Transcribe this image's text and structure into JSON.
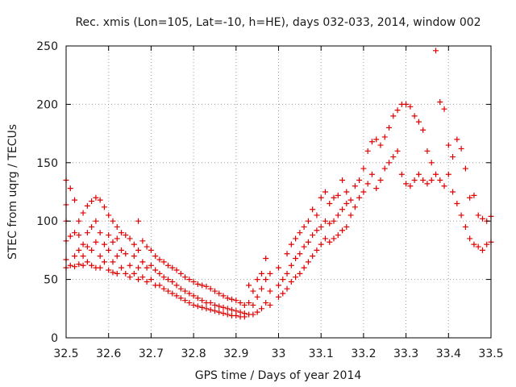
{
  "chart_data": {
    "type": "scatter",
    "title": "Rec. xmis (Lon=105, Lat=-10, h=HE), days 032-033, 2014, window 002",
    "xlabel": "GPS time / Days of year 2014",
    "ylabel": "STEC from uqrg / TECUs",
    "xlim": [
      32.5,
      33.5
    ],
    "ylim": [
      0,
      250
    ],
    "xticks": [
      "32.5",
      "32.6",
      "32.7",
      "32.8",
      "32.9",
      "33",
      "33.1",
      "33.2",
      "33.3",
      "33.4",
      "33.5"
    ],
    "yticks": [
      "0",
      "50",
      "100",
      "150",
      "200",
      "250"
    ],
    "grid": true,
    "marker": "+",
    "color": "#e00000",
    "points": [
      [
        32.5,
        135
      ],
      [
        32.5,
        114
      ],
      [
        32.5,
        100
      ],
      [
        32.5,
        83
      ],
      [
        32.5,
        67
      ],
      [
        32.5,
        60
      ],
      [
        32.51,
        128
      ],
      [
        32.51,
        87
      ],
      [
        32.51,
        62
      ],
      [
        32.52,
        118
      ],
      [
        32.52,
        90
      ],
      [
        32.52,
        70
      ],
      [
        32.52,
        61
      ],
      [
        32.53,
        100
      ],
      [
        32.53,
        88
      ],
      [
        32.53,
        75
      ],
      [
        32.53,
        63
      ],
      [
        32.54,
        107
      ],
      [
        32.54,
        80
      ],
      [
        32.54,
        70
      ],
      [
        32.54,
        62
      ],
      [
        32.55,
        113
      ],
      [
        32.55,
        90
      ],
      [
        32.55,
        78
      ],
      [
        32.55,
        65
      ],
      [
        32.56,
        117
      ],
      [
        32.56,
        95
      ],
      [
        32.56,
        75
      ],
      [
        32.56,
        62
      ],
      [
        32.57,
        120
      ],
      [
        32.57,
        100
      ],
      [
        32.57,
        82
      ],
      [
        32.57,
        60
      ],
      [
        32.58,
        118
      ],
      [
        32.58,
        90
      ],
      [
        32.58,
        70
      ],
      [
        32.58,
        60
      ],
      [
        32.59,
        112
      ],
      [
        32.59,
        80
      ],
      [
        32.59,
        65
      ],
      [
        32.6,
        105
      ],
      [
        32.6,
        88
      ],
      [
        32.6,
        75
      ],
      [
        32.6,
        58
      ],
      [
        32.61,
        100
      ],
      [
        32.61,
        82
      ],
      [
        32.61,
        65
      ],
      [
        32.61,
        56
      ],
      [
        32.62,
        95
      ],
      [
        32.62,
        85
      ],
      [
        32.62,
        70
      ],
      [
        32.62,
        55
      ],
      [
        32.63,
        90
      ],
      [
        32.63,
        75
      ],
      [
        32.63,
        60
      ],
      [
        32.64,
        88
      ],
      [
        32.64,
        72
      ],
      [
        32.64,
        55
      ],
      [
        32.65,
        85
      ],
      [
        32.65,
        62
      ],
      [
        32.65,
        52
      ],
      [
        32.66,
        80
      ],
      [
        32.66,
        70
      ],
      [
        32.66,
        55
      ],
      [
        32.67,
        100
      ],
      [
        32.67,
        75
      ],
      [
        32.67,
        60
      ],
      [
        32.67,
        50
      ],
      [
        32.68,
        83
      ],
      [
        32.68,
        65
      ],
      [
        32.68,
        52
      ],
      [
        32.69,
        78
      ],
      [
        32.69,
        60
      ],
      [
        32.69,
        48
      ],
      [
        32.7,
        75
      ],
      [
        32.7,
        62
      ],
      [
        32.7,
        50
      ],
      [
        32.71,
        70
      ],
      [
        32.71,
        58
      ],
      [
        32.71,
        45
      ],
      [
        32.72,
        67
      ],
      [
        32.72,
        55
      ],
      [
        32.72,
        45
      ],
      [
        32.73,
        65
      ],
      [
        32.73,
        52
      ],
      [
        32.73,
        42
      ],
      [
        32.74,
        62
      ],
      [
        32.74,
        50
      ],
      [
        32.74,
        40
      ],
      [
        32.75,
        60
      ],
      [
        32.75,
        48
      ],
      [
        32.75,
        38
      ],
      [
        32.76,
        58
      ],
      [
        32.76,
        45
      ],
      [
        32.76,
        36
      ],
      [
        32.77,
        55
      ],
      [
        32.77,
        42
      ],
      [
        32.77,
        34
      ],
      [
        32.78,
        52
      ],
      [
        32.78,
        40
      ],
      [
        32.78,
        32
      ],
      [
        32.79,
        50
      ],
      [
        32.79,
        38
      ],
      [
        32.79,
        30
      ],
      [
        32.8,
        48
      ],
      [
        32.8,
        36
      ],
      [
        32.8,
        28
      ],
      [
        32.81,
        46
      ],
      [
        32.81,
        34
      ],
      [
        32.81,
        27
      ],
      [
        32.82,
        45
      ],
      [
        32.82,
        32
      ],
      [
        32.82,
        26
      ],
      [
        32.83,
        44
      ],
      [
        32.83,
        30
      ],
      [
        32.83,
        25
      ],
      [
        32.84,
        42
      ],
      [
        32.84,
        30
      ],
      [
        32.84,
        24
      ],
      [
        32.85,
        40
      ],
      [
        32.85,
        28
      ],
      [
        32.85,
        23
      ],
      [
        32.86,
        38
      ],
      [
        32.86,
        27
      ],
      [
        32.86,
        22
      ],
      [
        32.87,
        36
      ],
      [
        32.87,
        26
      ],
      [
        32.87,
        21
      ],
      [
        32.88,
        34
      ],
      [
        32.88,
        25
      ],
      [
        32.88,
        20
      ],
      [
        32.89,
        33
      ],
      [
        32.89,
        24
      ],
      [
        32.89,
        19
      ],
      [
        32.9,
        32
      ],
      [
        32.9,
        23
      ],
      [
        32.9,
        19
      ],
      [
        32.91,
        30
      ],
      [
        32.91,
        22
      ],
      [
        32.91,
        18
      ],
      [
        32.92,
        28
      ],
      [
        32.92,
        21
      ],
      [
        32.92,
        18
      ],
      [
        32.93,
        45
      ],
      [
        32.93,
        30
      ],
      [
        32.93,
        20
      ],
      [
        32.94,
        40
      ],
      [
        32.94,
        28
      ],
      [
        32.94,
        20
      ],
      [
        32.95,
        50
      ],
      [
        32.95,
        35
      ],
      [
        32.95,
        22
      ],
      [
        32.96,
        55
      ],
      [
        32.96,
        42
      ],
      [
        32.96,
        25
      ],
      [
        32.97,
        68
      ],
      [
        32.97,
        50
      ],
      [
        32.97,
        30
      ],
      [
        32.98,
        55
      ],
      [
        32.98,
        40
      ],
      [
        32.98,
        28
      ],
      [
        33.0,
        60
      ],
      [
        33.0,
        45
      ],
      [
        33.0,
        35
      ],
      [
        33.01,
        50
      ],
      [
        33.01,
        38
      ],
      [
        33.02,
        72
      ],
      [
        33.02,
        55
      ],
      [
        33.02,
        42
      ],
      [
        33.03,
        80
      ],
      [
        33.03,
        62
      ],
      [
        33.03,
        48
      ],
      [
        33.04,
        85
      ],
      [
        33.04,
        68
      ],
      [
        33.04,
        52
      ],
      [
        33.05,
        90
      ],
      [
        33.05,
        72
      ],
      [
        33.05,
        55
      ],
      [
        33.06,
        95
      ],
      [
        33.06,
        78
      ],
      [
        33.06,
        60
      ],
      [
        33.07,
        100
      ],
      [
        33.07,
        82
      ],
      [
        33.07,
        65
      ],
      [
        33.08,
        110
      ],
      [
        33.08,
        88
      ],
      [
        33.08,
        70
      ],
      [
        33.09,
        105
      ],
      [
        33.09,
        92
      ],
      [
        33.09,
        75
      ],
      [
        33.1,
        120
      ],
      [
        33.1,
        95
      ],
      [
        33.1,
        80
      ],
      [
        33.11,
        125
      ],
      [
        33.11,
        100
      ],
      [
        33.11,
        85
      ],
      [
        33.12,
        115
      ],
      [
        33.12,
        98
      ],
      [
        33.12,
        82
      ],
      [
        33.13,
        120
      ],
      [
        33.13,
        100
      ],
      [
        33.13,
        85
      ],
      [
        33.14,
        122
      ],
      [
        33.14,
        105
      ],
      [
        33.14,
        88
      ],
      [
        33.15,
        135
      ],
      [
        33.15,
        110
      ],
      [
        33.15,
        92
      ],
      [
        33.16,
        125
      ],
      [
        33.16,
        115
      ],
      [
        33.16,
        95
      ],
      [
        33.17,
        118
      ],
      [
        33.17,
        105
      ],
      [
        33.18,
        130
      ],
      [
        33.18,
        112
      ],
      [
        33.19,
        135
      ],
      [
        33.19,
        120
      ],
      [
        33.2,
        145
      ],
      [
        33.2,
        125
      ],
      [
        33.21,
        160
      ],
      [
        33.21,
        132
      ],
      [
        33.22,
        168
      ],
      [
        33.22,
        140
      ],
      [
        33.23,
        170
      ],
      [
        33.23,
        128
      ],
      [
        33.24,
        165
      ],
      [
        33.24,
        135
      ],
      [
        33.25,
        172
      ],
      [
        33.25,
        145
      ],
      [
        33.26,
        180
      ],
      [
        33.26,
        150
      ],
      [
        33.27,
        190
      ],
      [
        33.27,
        155
      ],
      [
        33.28,
        195
      ],
      [
        33.28,
        160
      ],
      [
        33.29,
        200
      ],
      [
        33.29,
        140
      ],
      [
        33.3,
        200
      ],
      [
        33.3,
        132
      ],
      [
        33.31,
        198
      ],
      [
        33.31,
        130
      ],
      [
        33.32,
        190
      ],
      [
        33.32,
        135
      ],
      [
        33.33,
        185
      ],
      [
        33.33,
        140
      ],
      [
        33.34,
        178
      ],
      [
        33.34,
        135
      ],
      [
        33.35,
        160
      ],
      [
        33.35,
        132
      ],
      [
        33.36,
        150
      ],
      [
        33.36,
        135
      ],
      [
        33.37,
        246
      ],
      [
        33.37,
        140
      ],
      [
        33.38,
        202
      ],
      [
        33.38,
        135
      ],
      [
        33.39,
        196
      ],
      [
        33.39,
        130
      ],
      [
        33.4,
        165
      ],
      [
        33.4,
        140
      ],
      [
        33.41,
        155
      ],
      [
        33.41,
        125
      ],
      [
        33.42,
        170
      ],
      [
        33.42,
        115
      ],
      [
        33.43,
        162
      ],
      [
        33.43,
        105
      ],
      [
        33.44,
        145
      ],
      [
        33.44,
        95
      ],
      [
        33.45,
        120
      ],
      [
        33.45,
        85
      ],
      [
        33.46,
        122
      ],
      [
        33.46,
        80
      ],
      [
        33.47,
        105
      ],
      [
        33.47,
        78
      ],
      [
        33.48,
        102
      ],
      [
        33.48,
        75
      ],
      [
        33.49,
        100
      ],
      [
        33.49,
        80
      ],
      [
        33.5,
        104
      ],
      [
        33.5,
        82
      ]
    ]
  }
}
